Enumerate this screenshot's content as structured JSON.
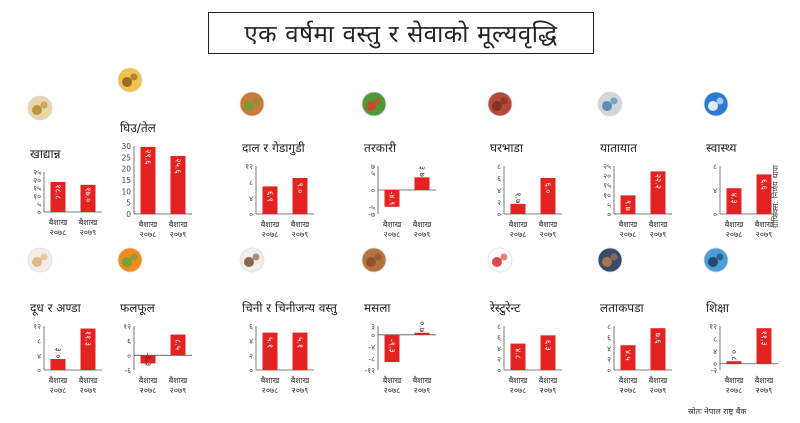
{
  "title": "एक वर्षमा वस्तु र सेवाको मूल्यवृद्धि",
  "credit": "ग्राफिक्स: निर्णय थापा",
  "source": "स्रोतः नेपाल राष्ट्र बैंक",
  "colors": {
    "bar": "#e32222",
    "axis": "#555555",
    "text": "#222222"
  },
  "chart_data": [
    {
      "type": "bar",
      "title": "खाद्यान्न",
      "icon": "grain-icon",
      "categories": [
        "बैशाख २०७८",
        "बैशाख २०७९"
      ],
      "values": [
        18.8,
        17.0
      ],
      "value_labels": [
        "१८.८",
        "१७.०"
      ],
      "ylim": [
        0,
        25
      ],
      "yticks": [
        0,
        5,
        10,
        15,
        20,
        25
      ],
      "ytick_labels": [
        "०",
        "५",
        "१०",
        "१५",
        "२०",
        "२५"
      ]
    },
    {
      "type": "bar",
      "title": "घिउ/तेल",
      "icon": "oil-icon",
      "categories": [
        "बैशाख २०७८",
        "बैशाख २०७९"
      ],
      "values": [
        29.6,
        25.6
      ],
      "value_labels": [
        "२९.६",
        "२५.६"
      ],
      "ylim": [
        0,
        30
      ],
      "yticks": [
        0,
        5,
        10,
        15,
        20,
        25,
        30
      ],
      "ytick_labels": [
        "0",
        "5",
        "10",
        "15",
        "20",
        "25",
        "30"
      ]
    },
    {
      "type": "bar",
      "title": "दाल र गेडागुडी",
      "icon": "lentil-icon",
      "categories": [
        "बैशाख २०७८",
        "बैशाख २०७९"
      ],
      "values": [
        6.9,
        9.0
      ],
      "value_labels": [
        "६.९",
        "९.०"
      ],
      "ylim": [
        0,
        12
      ],
      "yticks": [
        0,
        4,
        8,
        12
      ],
      "ytick_labels": [
        "०",
        "४",
        "८",
        "१२"
      ]
    },
    {
      "type": "bar",
      "title": "तरकारी",
      "icon": "vegetable-icon",
      "categories": [
        "बैशाख २०७८",
        "बैशाख २०७९"
      ],
      "values": [
        -4.9,
        3.7
      ],
      "value_labels": [
        "-४.९",
        "३.७"
      ],
      "ylim": [
        -7,
        7
      ],
      "yticks": [
        -7,
        -5,
        0,
        5,
        7
      ],
      "ytick_labels": [
        "-७",
        "-५",
        "०",
        "५",
        "७"
      ]
    },
    {
      "type": "bar",
      "title": "घरभाडा",
      "icon": "house-icon",
      "categories": [
        "बैशाख २०७८",
        "बैशाख २०७९"
      ],
      "values": [
        1.7,
        6.0
      ],
      "value_labels": [
        "१.७",
        "६.०"
      ],
      "ylim": [
        0,
        8
      ],
      "yticks": [
        0,
        2,
        4,
        6,
        8
      ],
      "ytick_labels": [
        "०",
        "२",
        "४",
        "६",
        "८"
      ]
    },
    {
      "type": "bar",
      "title": "यातायात",
      "icon": "bus-icon",
      "categories": [
        "बैशाख २०७८",
        "बैशाख २०७९"
      ],
      "values": [
        9.7,
        22.2
      ],
      "value_labels": [
        "९.७",
        "२२.२"
      ],
      "ylim": [
        0,
        25
      ],
      "yticks": [
        0,
        5,
        10,
        15,
        20,
        25
      ],
      "ytick_labels": [
        "०",
        "५",
        "१०",
        "१५",
        "२०",
        "२५"
      ]
    },
    {
      "type": "bar",
      "title": "स्वास्थ्य",
      "icon": "health-icon",
      "categories": [
        "बैशाख २०७८",
        "बैशाख २०७९"
      ],
      "values": [
        4.3,
        6.6
      ],
      "value_labels": [
        "४.३",
        "६.६"
      ],
      "ylim": [
        0,
        8
      ],
      "yticks": [
        0,
        4,
        8
      ],
      "ytick_labels": [
        "०",
        "४",
        "८"
      ]
    },
    {
      "type": "bar",
      "title": "दूध र अण्डा",
      "icon": "milk-egg-icon",
      "categories": [
        "बैशाख २०७८",
        "बैशाख २०७९"
      ],
      "values": [
        3.0,
        11.3
      ],
      "value_labels": [
        "३.०",
        "११.३"
      ],
      "ylim": [
        0,
        12
      ],
      "yticks": [
        0,
        4,
        8,
        12
      ],
      "ytick_labels": [
        "०",
        "४",
        "८",
        "१२"
      ]
    },
    {
      "type": "bar",
      "title": "फलफूल",
      "icon": "fruit-icon",
      "categories": [
        "बैशाख २०७८",
        "बैशाख २०७९"
      ],
      "values": [
        -3.3,
        8.5
      ],
      "value_labels": [
        "-३.३",
        "८.५"
      ],
      "ylim": [
        -6,
        12
      ],
      "yticks": [
        -6,
        0,
        6,
        12
      ],
      "ytick_labels": [
        "-६",
        "०",
        "६",
        "१२"
      ]
    },
    {
      "type": "bar",
      "title": "चिनी र चिनीजन्य वस्तु",
      "icon": "sugar-icon",
      "categories": [
        "बैशाख २०७८",
        "बैशाख २०७९"
      ],
      "values": [
        5.1,
        5.1
      ],
      "value_labels": [
        "५.१",
        "५.१"
      ],
      "ylim": [
        0,
        6
      ],
      "yticks": [
        0,
        2,
        4,
        6
      ],
      "ytick_labels": [
        "०",
        "२",
        "४",
        "६"
      ]
    },
    {
      "type": "bar",
      "title": "मसला",
      "icon": "spice-icon",
      "categories": [
        "बैशाख २०७८",
        "बैशाख २०७९"
      ],
      "values": [
        -9.3,
        0.7
      ],
      "value_labels": [
        "-९.३",
        "०.७"
      ],
      "ylim": [
        -12,
        3
      ],
      "yticks": [
        -12,
        -8,
        -4,
        0,
        3
      ],
      "ytick_labels": [
        "-१२",
        "-८",
        "-४",
        "०",
        "३"
      ]
    },
    {
      "type": "bar",
      "title": "रेस्टुरेन्ट",
      "icon": "restaurant-icon",
      "categories": [
        "बैशाख २०७८",
        "बैशाख २०७९"
      ],
      "values": [
        4.8,
        6.3
      ],
      "value_labels": [
        "४.८",
        "६.३"
      ],
      "ylim": [
        0,
        8
      ],
      "yticks": [
        0,
        2,
        4,
        6,
        8
      ],
      "ytick_labels": [
        "०",
        "२",
        "४",
        "६",
        "८"
      ]
    },
    {
      "type": "bar",
      "title": "लताकपडा",
      "icon": "clothes-icon",
      "categories": [
        "बैशाख २०७८",
        "बैशाख २०७९"
      ],
      "values": [
        4.5,
        7.6
      ],
      "value_labels": [
        "४.५",
        "७.६"
      ],
      "ylim": [
        0,
        8
      ],
      "yticks": [
        0,
        2,
        4,
        6,
        8
      ],
      "ytick_labels": [
        "०",
        "२",
        "४",
        "६",
        "८"
      ]
    },
    {
      "type": "bar",
      "title": "शिक्षा",
      "icon": "education-icon",
      "categories": [
        "बैशाख २०७८",
        "बैशाख २०७९"
      ],
      "values": [
        0.8,
        11.3
      ],
      "value_labels": [
        "०.८",
        "११.३"
      ],
      "ylim": [
        -2,
        12
      ],
      "yticks": [
        -2,
        0,
        4,
        8,
        12
      ],
      "ytick_labels": [
        "-२",
        "०",
        "४",
        "८",
        "१२"
      ]
    }
  ]
}
